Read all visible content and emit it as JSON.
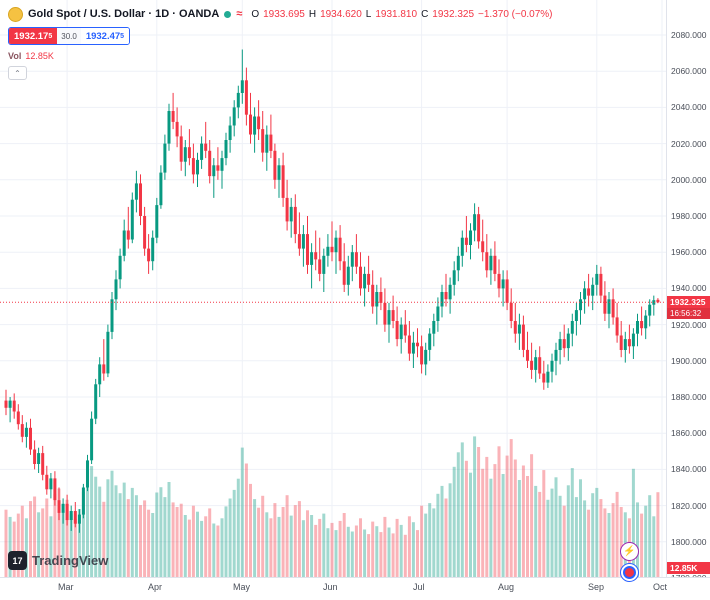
{
  "header": {
    "symbol_title": "Gold Spot / U.S. Dollar · 1D · OANDA",
    "ohlc": {
      "o_label": "O",
      "o": "1933.695",
      "h_label": "H",
      "h": "1934.620",
      "l_label": "L",
      "l": "1931.810",
      "c_label": "C",
      "c": "1932.325",
      "change_label": "−1.370 (−0.07%)"
    },
    "sell_price": "1932.17",
    "sell_sup": "5",
    "spread": "30.0",
    "buy_price": "1932.47",
    "buy_sup": "5",
    "vol_label": "Vol",
    "vol_value": "12.85K"
  },
  "icons": {
    "collapse": "⌃",
    "lightning": "⚡",
    "wave": "≈"
  },
  "price_axis": {
    "labels": [
      "2080.000",
      "2060.000",
      "2040.000",
      "2020.000",
      "2000.000",
      "1980.000",
      "1960.000",
      "1940.000",
      "1920.000",
      "1900.000",
      "1880.000",
      "1860.000",
      "1840.000",
      "1820.000",
      "1800.000",
      "1780.000"
    ],
    "last_price_label": "1932.325",
    "countdown": "16:56:32",
    "volume_label": "12.85K"
  },
  "footer": {
    "logo_text": "TradingView"
  },
  "colors": {
    "up": "#089981",
    "down": "#f23645",
    "blue": "#2962ff",
    "vol_up": "rgba(8,153,129,0.38)",
    "vol_down": "rgba(242,54,69,0.38)",
    "grid": "#eef1f7",
    "last_line": "#f23645"
  },
  "chart_data": {
    "type": "candlestick",
    "symbol": "Gold Spot / U.S. Dollar",
    "interval": "1D",
    "exchange": "OANDA",
    "ohlc_current": {
      "open": 1933.695,
      "high": 1934.62,
      "low": 1931.81,
      "close": 1932.325,
      "change": -1.37,
      "change_pct": -0.07
    },
    "volume_current": "12.85K",
    "volume_unit": "K",
    "y_axis": {
      "min": 1780,
      "max": 2080,
      "tick_step": 20
    },
    "x_axis_months": [
      {
        "label": "Mar",
        "candle_index": 15
      },
      {
        "label": "Apr",
        "candle_index": 37
      },
      {
        "label": "May",
        "candle_index": 58
      },
      {
        "label": "Jun",
        "candle_index": 80
      },
      {
        "label": "Jul",
        "candle_index": 102
      },
      {
        "label": "Aug",
        "candle_index": 123
      },
      {
        "label": "Sep",
        "candle_index": 145
      },
      {
        "label": "Oct",
        "candle_index": 161
      }
    ],
    "candles": [
      [
        1878,
        1884,
        1870,
        1874,
        10.2
      ],
      [
        1874,
        1880,
        1866,
        1878,
        9.1
      ],
      [
        1878,
        1882,
        1868,
        1872,
        8.4
      ],
      [
        1872,
        1876,
        1862,
        1865,
        9.6
      ],
      [
        1865,
        1870,
        1855,
        1858,
        10.8
      ],
      [
        1858,
        1866,
        1852,
        1863,
        8.9
      ],
      [
        1863,
        1868,
        1848,
        1851,
        11.5
      ],
      [
        1851,
        1856,
        1840,
        1843,
        12.2
      ],
      [
        1843,
        1852,
        1838,
        1849,
        9.8
      ],
      [
        1849,
        1853,
        1834,
        1837,
        10.4
      ],
      [
        1837,
        1842,
        1826,
        1829,
        11.9
      ],
      [
        1829,
        1838,
        1824,
        1835,
        9.2
      ],
      [
        1835,
        1839,
        1820,
        1823,
        12.6
      ],
      [
        1823,
        1830,
        1812,
        1816,
        13.4
      ],
      [
        1816,
        1824,
        1810,
        1821,
        10.1
      ],
      [
        1821,
        1826,
        1809,
        1812,
        11.7
      ],
      [
        1812,
        1820,
        1806,
        1817,
        9.5
      ],
      [
        1817,
        1822,
        1808,
        1810,
        8.8
      ],
      [
        1810,
        1818,
        1805,
        1815,
        10.3
      ],
      [
        1815,
        1832,
        1813,
        1830,
        12.9
      ],
      [
        1830,
        1848,
        1828,
        1845,
        14.6
      ],
      [
        1845,
        1872,
        1843,
        1868,
        16.8
      ],
      [
        1868,
        1890,
        1865,
        1887,
        15.2
      ],
      [
        1887,
        1902,
        1880,
        1898,
        13.7
      ],
      [
        1898,
        1912,
        1889,
        1893,
        11.4
      ],
      [
        1893,
        1920,
        1891,
        1916,
        14.8
      ],
      [
        1916,
        1938,
        1912,
        1934,
        16.1
      ],
      [
        1934,
        1950,
        1928,
        1945,
        13.9
      ],
      [
        1945,
        1962,
        1940,
        1958,
        12.7
      ],
      [
        1958,
        1978,
        1955,
        1972,
        14.3
      ],
      [
        1972,
        1985,
        1962,
        1967,
        11.8
      ],
      [
        1967,
        1993,
        1965,
        1989,
        13.5
      ],
      [
        1989,
        2005,
        1982,
        1998,
        12.4
      ],
      [
        1998,
        2003,
        1975,
        1980,
        10.9
      ],
      [
        1980,
        1985,
        1958,
        1962,
        11.6
      ],
      [
        1962,
        1970,
        1948,
        1955,
        10.2
      ],
      [
        1955,
        1972,
        1950,
        1968,
        9.7
      ],
      [
        1968,
        1990,
        1965,
        1986,
        12.8
      ],
      [
        1986,
        2008,
        1984,
        2004,
        13.6
      ],
      [
        2004,
        2025,
        2000,
        2020,
        12.1
      ],
      [
        2020,
        2042,
        2016,
        2038,
        14.4
      ],
      [
        2038,
        2048,
        2028,
        2032,
        11.3
      ],
      [
        2032,
        2040,
        2018,
        2024,
        10.6
      ],
      [
        2024,
        2030,
        2005,
        2010,
        11.1
      ],
      [
        2010,
        2022,
        2002,
        2018,
        9.4
      ],
      [
        2018,
        2028,
        2008,
        2012,
        8.7
      ],
      [
        2012,
        2020,
        1998,
        2003,
        10.8
      ],
      [
        2003,
        2015,
        1996,
        2011,
        9.9
      ],
      [
        2011,
        2024,
        2006,
        2020,
        8.5
      ],
      [
        2020,
        2032,
        2012,
        2016,
        9.2
      ],
      [
        2016,
        2022,
        1998,
        2002,
        10.4
      ],
      [
        2002,
        2012,
        1990,
        2008,
        8.1
      ],
      [
        2008,
        2018,
        2000,
        2005,
        7.8
      ],
      [
        2005,
        2016,
        1995,
        2012,
        8.9
      ],
      [
        2012,
        2026,
        2008,
        2022,
        10.7
      ],
      [
        2022,
        2035,
        2015,
        2030,
        11.9
      ],
      [
        2030,
        2044,
        2024,
        2040,
        13.2
      ],
      [
        2040,
        2052,
        2034,
        2048,
        14.9
      ],
      [
        2048,
        2072,
        2042,
        2055,
        19.6
      ],
      [
        2055,
        2062,
        2030,
        2036,
        17.2
      ],
      [
        2036,
        2048,
        2020,
        2025,
        14.1
      ],
      [
        2025,
        2040,
        2015,
        2035,
        11.8
      ],
      [
        2035,
        2044,
        2022,
        2028,
        10.5
      ],
      [
        2028,
        2038,
        2010,
        2015,
        12.3
      ],
      [
        2015,
        2030,
        2005,
        2025,
        9.8
      ],
      [
        2025,
        2036,
        2012,
        2016,
        8.9
      ],
      [
        2016,
        2020,
        1995,
        2000,
        11.2
      ],
      [
        2000,
        2012,
        1990,
        2008,
        9.1
      ],
      [
        2008,
        2015,
        1985,
        1990,
        10.6
      ],
      [
        1990,
        2000,
        1972,
        1977,
        12.4
      ],
      [
        1977,
        1990,
        1968,
        1985,
        9.3
      ],
      [
        1985,
        1992,
        1965,
        1970,
        10.9
      ],
      [
        1970,
        1982,
        1958,
        1962,
        11.5
      ],
      [
        1962,
        1975,
        1952,
        1970,
        8.6
      ],
      [
        1970,
        1980,
        1948,
        1953,
        10.1
      ],
      [
        1953,
        1965,
        1940,
        1960,
        9.4
      ],
      [
        1960,
        1972,
        1950,
        1956,
        7.9
      ],
      [
        1956,
        1968,
        1944,
        1948,
        8.8
      ],
      [
        1948,
        1962,
        1938,
        1958,
        9.6
      ],
      [
        1958,
        1970,
        1952,
        1963,
        7.4
      ],
      [
        1963,
        1977,
        1955,
        1960,
        8.2
      ],
      [
        1960,
        1972,
        1948,
        1968,
        7.1
      ],
      [
        1968,
        1975,
        1950,
        1955,
        8.5
      ],
      [
        1955,
        1965,
        1938,
        1942,
        9.7
      ],
      [
        1942,
        1958,
        1936,
        1952,
        7.6
      ],
      [
        1952,
        1964,
        1944,
        1960,
        6.9
      ],
      [
        1960,
        1970,
        1948,
        1952,
        7.8
      ],
      [
        1952,
        1960,
        1936,
        1940,
        8.9
      ],
      [
        1940,
        1952,
        1930,
        1948,
        7.2
      ],
      [
        1948,
        1958,
        1938,
        1942,
        6.5
      ],
      [
        1942,
        1950,
        1926,
        1930,
        8.4
      ],
      [
        1930,
        1942,
        1920,
        1938,
        7.7
      ],
      [
        1938,
        1946,
        1928,
        1932,
        6.8
      ],
      [
        1932,
        1940,
        1916,
        1920,
        9.1
      ],
      [
        1920,
        1932,
        1910,
        1928,
        7.5
      ],
      [
        1928,
        1936,
        1918,
        1922,
        6.6
      ],
      [
        1922,
        1930,
        1908,
        1912,
        8.8
      ],
      [
        1912,
        1924,
        1904,
        1920,
        7.9
      ],
      [
        1920,
        1928,
        1910,
        1914,
        6.4
      ],
      [
        1914,
        1922,
        1900,
        1904,
        9.2
      ],
      [
        1904,
        1916,
        1896,
        1910,
        8.3
      ],
      [
        1910,
        1918,
        1902,
        1908,
        7.1
      ],
      [
        1908,
        1914,
        1893,
        1898,
        10.8
      ],
      [
        1898,
        1910,
        1892,
        1906,
        9.6
      ],
      [
        1906,
        1918,
        1900,
        1915,
        11.2
      ],
      [
        1915,
        1926,
        1908,
        1922,
        10.4
      ],
      [
        1922,
        1935,
        1916,
        1930,
        12.6
      ],
      [
        1930,
        1942,
        1924,
        1938,
        13.8
      ],
      [
        1938,
        1948,
        1930,
        1934,
        11.9
      ],
      [
        1934,
        1946,
        1926,
        1942,
        14.2
      ],
      [
        1942,
        1955,
        1936,
        1950,
        16.7
      ],
      [
        1950,
        1963,
        1944,
        1958,
        18.9
      ],
      [
        1958,
        1972,
        1952,
        1968,
        20.4
      ],
      [
        1968,
        1980,
        1960,
        1964,
        17.6
      ],
      [
        1964,
        1976,
        1956,
        1972,
        15.8
      ],
      [
        1972,
        1987,
        1966,
        1981,
        21.3
      ],
      [
        1981,
        1985,
        1962,
        1966,
        19.7
      ],
      [
        1966,
        1978,
        1955,
        1960,
        16.4
      ],
      [
        1960,
        1970,
        1946,
        1950,
        18.2
      ],
      [
        1950,
        1962,
        1942,
        1958,
        14.9
      ],
      [
        1958,
        1966,
        1944,
        1948,
        17.1
      ],
      [
        1948,
        1956,
        1935,
        1940,
        19.8
      ],
      [
        1940,
        1950,
        1930,
        1945,
        15.6
      ],
      [
        1945,
        1950,
        1928,
        1932,
        18.4
      ],
      [
        1932,
        1940,
        1918,
        1922,
        20.9
      ],
      [
        1922,
        1932,
        1910,
        1915,
        17.8
      ],
      [
        1915,
        1926,
        1906,
        1920,
        14.7
      ],
      [
        1920,
        1925,
        1902,
        1906,
        16.9
      ],
      [
        1906,
        1916,
        1896,
        1900,
        15.3
      ],
      [
        1900,
        1910,
        1890,
        1895,
        18.6
      ],
      [
        1895,
        1906,
        1888,
        1902,
        13.8
      ],
      [
        1902,
        1908,
        1890,
        1893,
        12.9
      ],
      [
        1893,
        1900,
        1884,
        1888,
        16.2
      ],
      [
        1888,
        1898,
        1885,
        1894,
        11.7
      ],
      [
        1894,
        1904,
        1888,
        1900,
        13.4
      ],
      [
        1900,
        1910,
        1892,
        1906,
        15.1
      ],
      [
        1906,
        1916,
        1898,
        1912,
        12.3
      ],
      [
        1912,
        1920,
        1902,
        1907,
        10.8
      ],
      [
        1907,
        1918,
        1900,
        1915,
        13.9
      ],
      [
        1915,
        1926,
        1908,
        1922,
        16.5
      ],
      [
        1922,
        1932,
        1914,
        1928,
        12.1
      ],
      [
        1928,
        1938,
        1920,
        1934,
        14.8
      ],
      [
        1934,
        1944,
        1926,
        1940,
        11.6
      ],
      [
        1940,
        1948,
        1930,
        1936,
        10.2
      ],
      [
        1936,
        1946,
        1928,
        1942,
        12.7
      ],
      [
        1942,
        1953,
        1936,
        1948,
        13.5
      ],
      [
        1948,
        1952,
        1932,
        1936,
        11.8
      ],
      [
        1936,
        1944,
        1922,
        1926,
        10.4
      ],
      [
        1926,
        1938,
        1918,
        1934,
        9.7
      ],
      [
        1934,
        1940,
        1920,
        1924,
        11.2
      ],
      [
        1924,
        1932,
        1910,
        1914,
        12.9
      ],
      [
        1914,
        1922,
        1902,
        1906,
        10.6
      ],
      [
        1906,
        1916,
        1899,
        1912,
        9.8
      ],
      [
        1912,
        1920,
        1904,
        1908,
        8.9
      ],
      [
        1908,
        1918,
        1901,
        1915,
        16.4
      ],
      [
        1915,
        1926,
        1908,
        1922,
        11.3
      ],
      [
        1922,
        1930,
        1914,
        1918,
        9.6
      ],
      [
        1918,
        1928,
        1912,
        1925,
        10.8
      ],
      [
        1925,
        1934,
        1919,
        1931,
        12.4
      ],
      [
        1931,
        1936,
        1925,
        1933.5,
        9.2
      ],
      [
        1933.695,
        1934.62,
        1931.81,
        1932.325,
        12.85
      ]
    ]
  }
}
